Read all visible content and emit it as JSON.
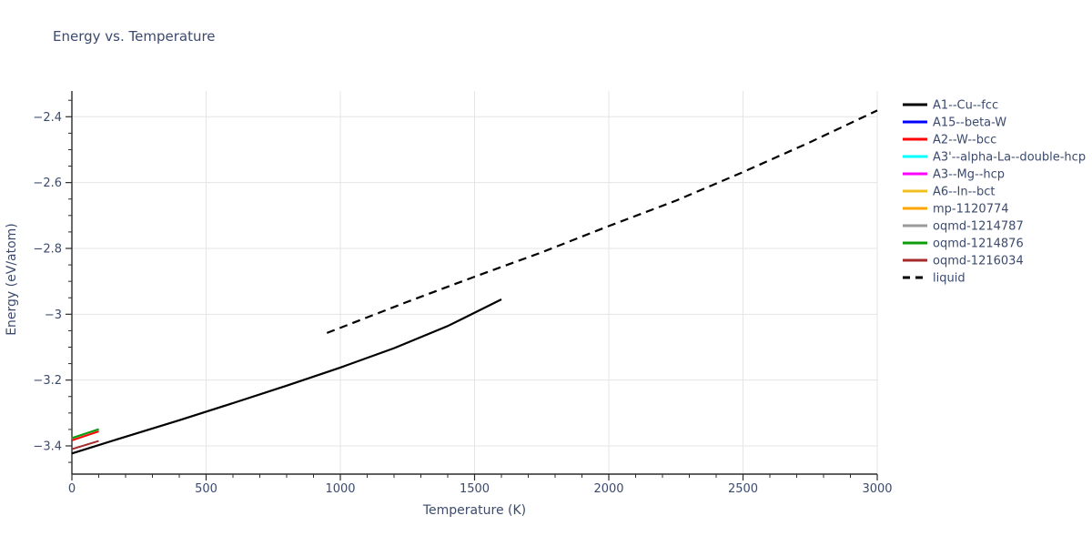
{
  "page": {
    "title": "Energy vs. Temperature"
  },
  "chart_data": {
    "type": "line",
    "title": "Energy vs. Temperature",
    "xlabel": "Temperature (K)",
    "ylabel": "Energy (eV/atom)",
    "xlim": [
      0,
      3000
    ],
    "ylim": [
      -3.486,
      -2.322
    ],
    "grid": true,
    "legend_position": "right-outside",
    "x_major_ticks": [
      0,
      500,
      1000,
      1500,
      2000,
      2500,
      3000
    ],
    "x_tick_labels": [
      "0",
      "500",
      "1000",
      "1500",
      "2000",
      "2500",
      "3000"
    ],
    "x_minor_step": 100,
    "y_major_ticks": [
      -2.4,
      -2.6,
      -2.8,
      -3,
      -3.2,
      -3.4
    ],
    "y_tick_labels": [
      "−2.4",
      "−2.6",
      "−2.8",
      "−3",
      "−3.2",
      "−3.4"
    ],
    "y_minor_step": 0.05,
    "colors": {
      "text": "#3b4a6e",
      "grid": "#e5e5e5",
      "axis": "#2b2b2b",
      "background": "#ffffff"
    },
    "series": [
      {
        "name": "A1--Cu--fcc",
        "color": "#000000",
        "dash": "solid",
        "width": 2.2,
        "points": [
          [
            0,
            -3.423
          ],
          [
            200,
            -3.372
          ],
          [
            400,
            -3.322
          ],
          [
            600,
            -3.27
          ],
          [
            800,
            -3.217
          ],
          [
            1000,
            -3.162
          ],
          [
            1200,
            -3.103
          ],
          [
            1400,
            -3.036
          ],
          [
            1600,
            -2.955
          ]
        ]
      },
      {
        "name": "A15--beta-W",
        "color": "#0000ff",
        "dash": "solid",
        "width": 2,
        "points": [
          [
            0,
            -3.377
          ],
          [
            100,
            -3.35
          ]
        ]
      },
      {
        "name": "A2--W--bcc",
        "color": "#ff0000",
        "dash": "solid",
        "width": 2,
        "points": [
          [
            0,
            -3.383
          ],
          [
            100,
            -3.356
          ]
        ]
      },
      {
        "name": "A3'--alpha-La--double-hcp",
        "color": "#00ffff",
        "dash": "solid",
        "width": 2,
        "points": [
          [
            0,
            -3.377
          ],
          [
            100,
            -3.35
          ]
        ]
      },
      {
        "name": "A3--Mg--hcp",
        "color": "#ff00ff",
        "dash": "solid",
        "width": 2,
        "points": [
          [
            0,
            -3.377
          ],
          [
            100,
            -3.35
          ]
        ]
      },
      {
        "name": "A6--In--bct",
        "color": "#f0c020",
        "dash": "solid",
        "width": 2,
        "points": [
          [
            0,
            -3.377
          ],
          [
            100,
            -3.35
          ]
        ]
      },
      {
        "name": "mp-1120774",
        "color": "#ffa500",
        "dash": "solid",
        "width": 2,
        "points": [
          [
            0,
            -3.377
          ],
          [
            100,
            -3.35
          ]
        ]
      },
      {
        "name": "oqmd-1214787",
        "color": "#9a9a9a",
        "dash": "solid",
        "width": 2,
        "points": [
          [
            0,
            -3.377
          ],
          [
            100,
            -3.35
          ]
        ]
      },
      {
        "name": "oqmd-1214876",
        "color": "#0c9c0c",
        "dash": "solid",
        "width": 2,
        "points": [
          [
            0,
            -3.376
          ],
          [
            100,
            -3.349
          ]
        ]
      },
      {
        "name": "oqmd-1216034",
        "color": "#a52a2a",
        "dash": "solid",
        "width": 2,
        "points": [
          [
            0,
            -3.41
          ],
          [
            100,
            -3.385
          ]
        ]
      },
      {
        "name": "liquid",
        "color": "#000000",
        "dash": "dashed",
        "width": 2.2,
        "points": [
          [
            950,
            -3.057
          ],
          [
            1250,
            -2.962
          ],
          [
            1500,
            -2.886
          ],
          [
            1750,
            -2.812
          ],
          [
            2000,
            -2.732
          ],
          [
            2250,
            -2.655
          ],
          [
            2500,
            -2.568
          ],
          [
            2750,
            -2.477
          ],
          [
            3000,
            -2.381
          ]
        ]
      }
    ]
  }
}
